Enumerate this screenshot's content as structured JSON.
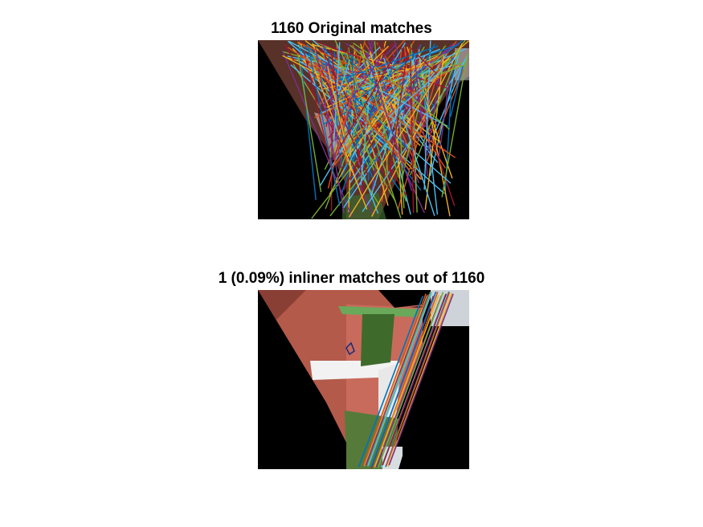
{
  "figure": {
    "top_panel": {
      "title": "1160 Original matches",
      "match_count": 1160
    },
    "bottom_panel": {
      "title": "1 (0.09%) inliner matches out of 1160",
      "inlier_count": 1,
      "inlier_percent": 0.09,
      "total_matches": 1160
    },
    "colors": {
      "background": "#ffffff",
      "image_fill": "#000000",
      "line_palette": [
        "#0072bd",
        "#d95319",
        "#edb120",
        "#7e2f8e",
        "#77ac30",
        "#4dbeee",
        "#a2142f"
      ]
    }
  }
}
